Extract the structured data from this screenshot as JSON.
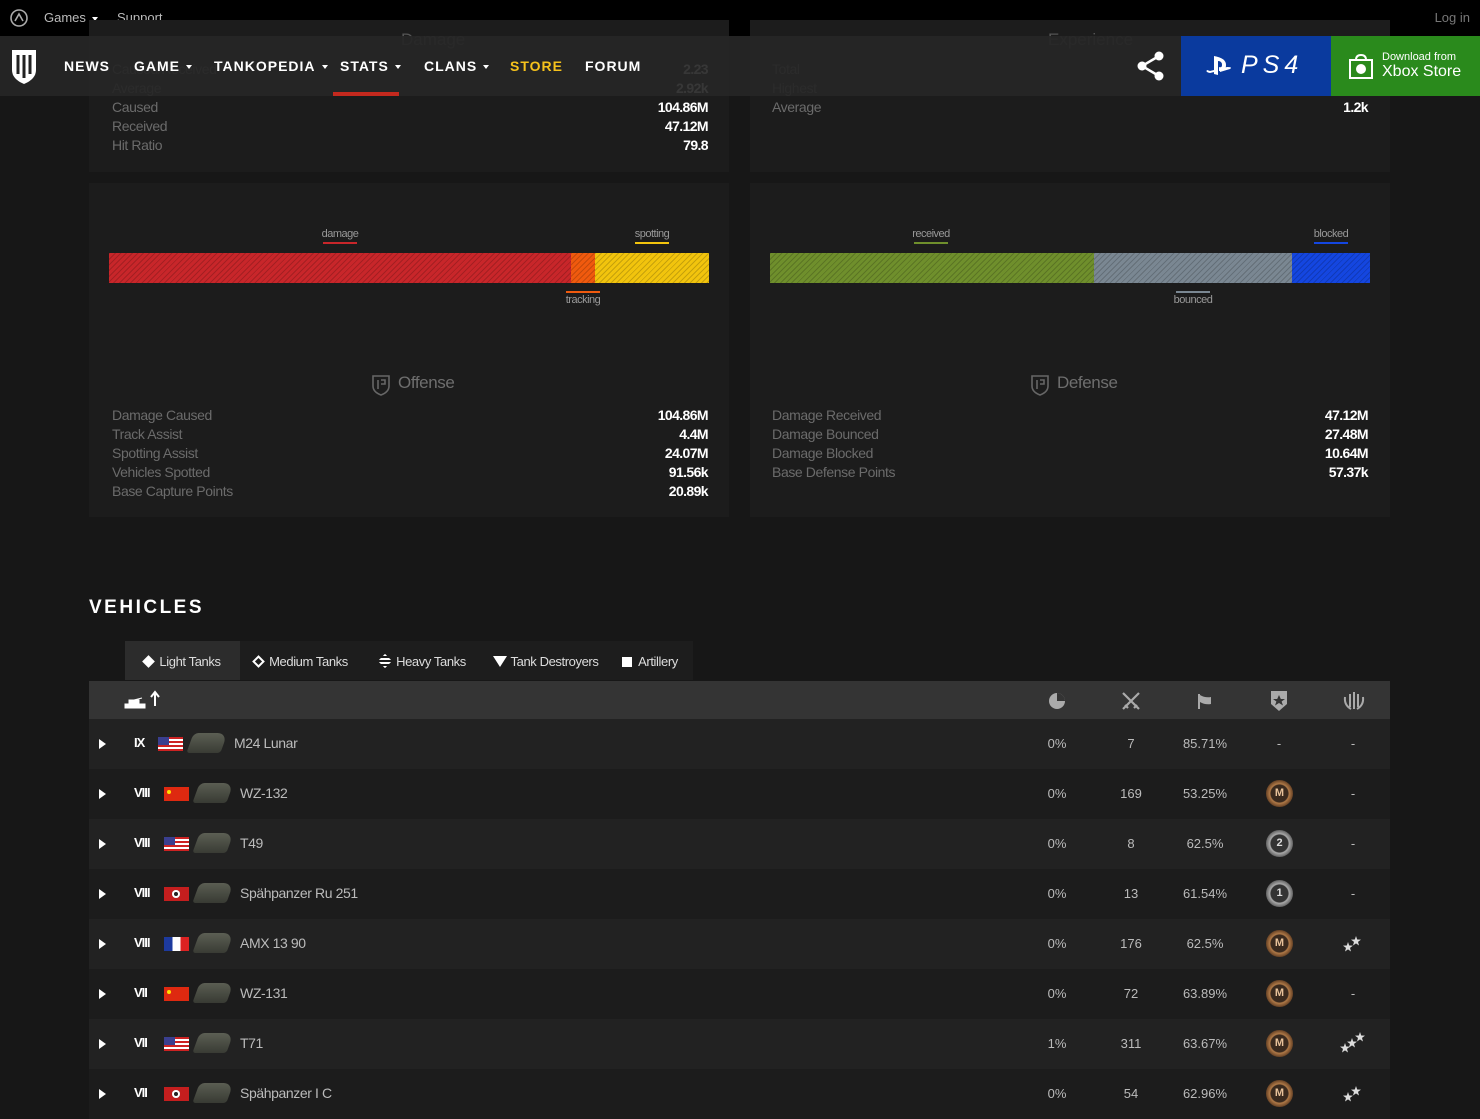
{
  "top_bar": {
    "links": [
      "Games",
      "Support"
    ],
    "login": "Log in"
  },
  "nav": {
    "items": [
      "NEWS",
      "GAME",
      "TANKOPEDIA",
      "STATS",
      "CLANS",
      "STORE",
      "FORUM"
    ],
    "ps4": "PS4",
    "xbox": [
      "Download from",
      "Xbox Store"
    ]
  },
  "damage_panel": {
    "title": "Damage",
    "rows": [
      {
        "label": "Caused/Received",
        "value": "2.23"
      },
      {
        "label": "Average",
        "value": "2.92k"
      },
      {
        "label": "Caused",
        "value": "104.86M"
      },
      {
        "label": "Received",
        "value": "47.12M"
      },
      {
        "label": "Hit Ratio",
        "value": "79.8"
      }
    ]
  },
  "experience_panel": {
    "title": "Experience",
    "rows": [
      {
        "label": "Total"
      },
      {
        "label": "Highest"
      },
      {
        "label": "Average",
        "value": "1.2k"
      }
    ]
  },
  "offense": {
    "bar_labels": {
      "damage": "damage",
      "spotting": "spotting",
      "tracking": "tracking"
    },
    "title": "Offense",
    "rows": [
      {
        "label": "Damage Caused",
        "value": "104.86M"
      },
      {
        "label": "Track Assist",
        "value": "4.4M"
      },
      {
        "label": "Spotting Assist",
        "value": "24.07M"
      },
      {
        "label": "Vehicles Spotted",
        "value": "91.56k"
      },
      {
        "label": "Base Capture Points",
        "value": "20.89k"
      }
    ]
  },
  "defense": {
    "bar_labels": {
      "received": "received",
      "blocked": "blocked",
      "bounced": "bounced"
    },
    "title": "Defense",
    "rows": [
      {
        "label": "Damage Received",
        "value": "47.12M"
      },
      {
        "label": "Damage Bounced",
        "value": "27.48M"
      },
      {
        "label": "Damage Blocked",
        "value": "10.64M"
      },
      {
        "label": "Base Defense Points",
        "value": "57.37k"
      }
    ]
  },
  "vehicles": {
    "title": "VEHICLES",
    "tabs": [
      "Light Tanks",
      "Medium Tanks",
      "Heavy Tanks",
      "Tank Destroyers",
      "Artillery"
    ],
    "rows": [
      {
        "tier": "IX",
        "name": "M24 Lunar",
        "a": "0%",
        "battles": "7",
        "wins": "85.71%",
        "mastery": "-",
        "marks": "-"
      },
      {
        "tier": "VIII",
        "name": "WZ-132",
        "a": "0%",
        "battles": "169",
        "wins": "53.25%",
        "mastery": "M",
        "marks": "-"
      },
      {
        "tier": "VIII",
        "name": "T49",
        "a": "0%",
        "battles": "8",
        "wins": "62.5%",
        "mastery": "2",
        "marks": "-"
      },
      {
        "tier": "VIII",
        "name": "Spähpanzer Ru 251",
        "a": "0%",
        "battles": "13",
        "wins": "61.54%",
        "mastery": "1",
        "marks": "-"
      },
      {
        "tier": "VIII",
        "name": "AMX 13 90",
        "a": "0%",
        "battles": "176",
        "wins": "62.5%",
        "mastery": "M"
      },
      {
        "tier": "VII",
        "name": "WZ-131",
        "a": "0%",
        "battles": "72",
        "wins": "63.89%",
        "mastery": "M",
        "marks": "-"
      },
      {
        "tier": "VII",
        "name": "T71",
        "a": "1%",
        "battles": "311",
        "wins": "63.67%",
        "mastery": "M"
      },
      {
        "tier": "VII",
        "name": "Spähpanzer I C",
        "a": "0%",
        "battles": "54",
        "wins": "62.96%",
        "mastery": "M"
      }
    ]
  }
}
